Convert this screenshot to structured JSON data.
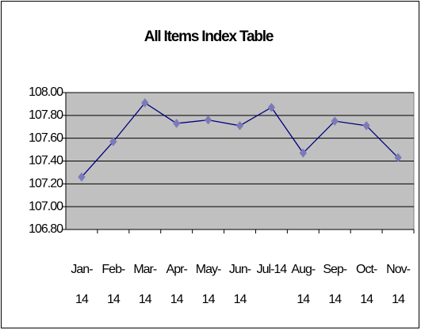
{
  "chart_data": {
    "type": "line",
    "title": "All Items Index Table",
    "categories": [
      "Jan-14",
      "Feb-14",
      "Mar-14",
      "Apr-14",
      "May-14",
      "Jun-14",
      "Jul-14",
      "Aug-14",
      "Sep-14",
      "Oct-14",
      "Nov-14"
    ],
    "series": [
      {
        "color": "#000080",
        "marker_color": "#7b7bb8",
        "values": [
          107.26,
          107.57,
          107.91,
          107.73,
          107.76,
          107.71,
          107.87,
          107.47,
          107.75,
          107.71,
          107.43
        ]
      }
    ],
    "ylim": [
      106.8,
      108.0
    ],
    "yticks": [
      {
        "value": 106.8,
        "label": "106.80"
      },
      {
        "value": 107.0,
        "label": "107.00"
      },
      {
        "value": 107.2,
        "label": "107.20"
      },
      {
        "value": 107.4,
        "label": "107.40"
      },
      {
        "value": 107.6,
        "label": "107.60"
      },
      {
        "value": 107.8,
        "label": "107.80"
      },
      {
        "value": 108.0,
        "label": "108.00"
      }
    ],
    "grid": true,
    "plot_background": "#c0c0c0"
  }
}
